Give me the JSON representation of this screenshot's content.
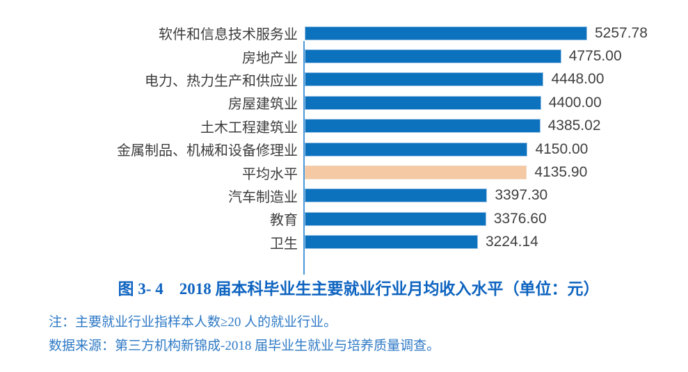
{
  "chart_data": {
    "type": "bar",
    "orientation": "horizontal",
    "title": "图 3- 4　2018 届本科毕业生主要就业行业月均收入水平（单位：元）",
    "categories": [
      "软件和信息技术服务业",
      "房地产业",
      "电力、热力生产和供应业",
      "房屋建筑业",
      "土木工程建筑业",
      "金属制品、机械和设备修理业",
      "平均水平",
      "汽车制造业",
      "教育",
      "卫生"
    ],
    "values": [
      5257.78,
      4775.0,
      4448.0,
      4400.0,
      4385.02,
      4150.0,
      4135.9,
      3397.3,
      3376.6,
      3224.14
    ],
    "value_labels": [
      "5257.78",
      "4775.00",
      "4448.00",
      "4400.00",
      "4385.02",
      "4150.00",
      "4135.90",
      "3397.30",
      "3376.60",
      "3224.14"
    ],
    "highlight_index": 6,
    "highlight_category": "平均水平",
    "xlim": [
      0,
      5700
    ],
    "grid": false,
    "legend": "none",
    "value_label_position": "outside-end",
    "colors": {
      "bar": "#0C72BE",
      "bar_border": "#9CC3E5",
      "highlight_bar": "#F5C9A3",
      "highlight_bar_border": "#EFD9C3",
      "axis_line": "#4B96D8",
      "category_text": "#3C3C3C",
      "value_text": "#3F3F3F",
      "title_text": "#0D63C0",
      "note_text": "#2E79C5"
    }
  },
  "notes": {
    "note1": "注：主要就业行业指样本人数≥20 人的就业行业。",
    "note2": "数据来源：第三方机构新锦成-2018 届毕业生就业与培养质量调查。"
  }
}
